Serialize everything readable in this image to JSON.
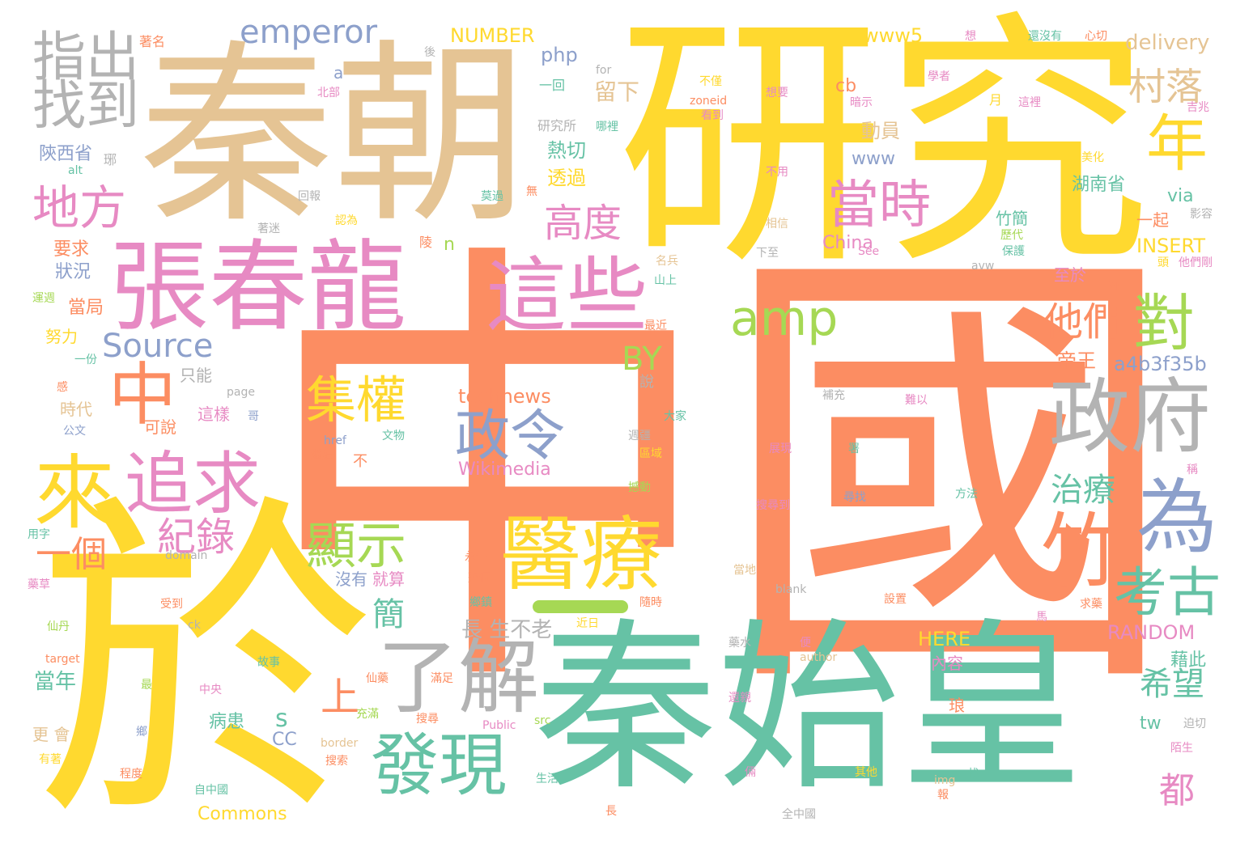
{
  "palette": {
    "orange": "#fc8d62",
    "yellow": "#ffd92f",
    "tan": "#e5c494",
    "teal": "#66c2a5",
    "pink": "#e78ac3",
    "green": "#a6d854",
    "grey": "#b3b3b3",
    "blue": "#8da0cb"
  },
  "words": [
    {
      "text": "中國",
      "color": "orange"
    },
    {
      "text": "研究",
      "color": "yellow"
    },
    {
      "text": "秦朝",
      "color": "tan"
    },
    {
      "text": "於",
      "color": "yellow"
    },
    {
      "text": "秦始皇",
      "color": "teal"
    },
    {
      "text": "張春龍",
      "color": "pink"
    },
    {
      "text": "指出",
      "color": "grey"
    },
    {
      "text": "找到",
      "color": "grey"
    },
    {
      "text": "地方",
      "color": "pink"
    },
    {
      "text": "這些",
      "color": "pink"
    },
    {
      "text": "中",
      "color": "orange"
    },
    {
      "text": "來",
      "color": "yellow"
    },
    {
      "text": "追求",
      "color": "pink"
    },
    {
      "text": "政府",
      "color": "grey"
    },
    {
      "text": "醫療",
      "color": "yellow"
    },
    {
      "text": "了解",
      "color": "grey"
    },
    {
      "text": "發現",
      "color": "teal"
    },
    {
      "text": "對",
      "color": "green"
    },
    {
      "text": "為",
      "color": "blue"
    },
    {
      "text": "竹",
      "color": "orange"
    },
    {
      "text": "考古",
      "color": "teal"
    },
    {
      "text": "政令",
      "color": "blue"
    },
    {
      "text": "集權",
      "color": "yellow"
    },
    {
      "text": "顯示",
      "color": "green"
    },
    {
      "text": "amp",
      "color": "green"
    },
    {
      "text": "年",
      "color": "yellow"
    },
    {
      "text": "當時",
      "color": "pink"
    },
    {
      "text": "高度",
      "color": "pink"
    },
    {
      "text": "村落",
      "color": "tan"
    },
    {
      "text": "他們",
      "color": "orange"
    },
    {
      "text": "emperor",
      "color": "blue"
    },
    {
      "text": "Source",
      "color": "blue"
    },
    {
      "text": "紀錄",
      "color": "pink"
    },
    {
      "text": "一個",
      "color": "orange"
    },
    {
      "text": "上",
      "color": "orange"
    },
    {
      "text": "簡",
      "color": "teal"
    },
    {
      "text": "BY",
      "color": "green"
    },
    {
      "text": "治療",
      "color": "teal"
    },
    {
      "text": "希望",
      "color": "teal"
    },
    {
      "text": "都",
      "color": "pink"
    },
    {
      "text": "NUMBER",
      "color": "yellow"
    },
    {
      "text": "www5",
      "color": "yellow"
    },
    {
      "text": "php",
      "color": "blue"
    },
    {
      "text": "delivery",
      "color": "tan"
    },
    {
      "text": "留下",
      "color": "tan"
    },
    {
      "text": "technews",
      "color": "orange"
    },
    {
      "text": "Wikimedia",
      "color": "pink"
    },
    {
      "text": "a4b3f35b",
      "color": "blue"
    },
    {
      "text": "RANDOM",
      "color": "pink"
    },
    {
      "text": "INSERT",
      "color": "yellow"
    },
    {
      "text": "HERE",
      "color": "yellow"
    },
    {
      "text": "China",
      "color": "pink"
    },
    {
      "text": "Commons",
      "color": "yellow"
    },
    {
      "text": "長 生不老",
      "color": "grey"
    },
    {
      "text": "陝西省",
      "color": "blue"
    },
    {
      "text": "湖南省",
      "color": "teal"
    },
    {
      "text": "熱切",
      "color": "teal"
    },
    {
      "text": "透過",
      "color": "yellow"
    },
    {
      "text": "動員",
      "color": "tan"
    },
    {
      "text": "www",
      "color": "blue"
    },
    {
      "text": "via",
      "color": "teal"
    },
    {
      "text": "帝王",
      "color": "orange"
    },
    {
      "text": "藉此",
      "color": "teal"
    },
    {
      "text": "s",
      "color": "teal"
    },
    {
      "text": "n",
      "color": "green"
    },
    {
      "text": "CC",
      "color": "blue"
    },
    {
      "text": "cb",
      "color": "orange"
    },
    {
      "text": "tw",
      "color": "teal"
    },
    {
      "text": "a",
      "color": "blue"
    },
    {
      "text": "要求",
      "color": "orange"
    },
    {
      "text": "狀況",
      "color": "blue"
    },
    {
      "text": "當局",
      "color": "orange"
    },
    {
      "text": "努力",
      "color": "yellow"
    },
    {
      "text": "時代",
      "color": "tan"
    },
    {
      "text": "當年",
      "color": "teal"
    },
    {
      "text": "一起",
      "color": "orange"
    },
    {
      "text": "至於",
      "color": "pink"
    },
    {
      "text": "竹簡",
      "color": "teal"
    },
    {
      "text": "內容",
      "color": "pink"
    },
    {
      "text": "只能",
      "color": "grey"
    },
    {
      "text": "這樣",
      "color": "pink"
    },
    {
      "text": "可說",
      "color": "orange"
    },
    {
      "text": "病患",
      "color": "teal"
    },
    {
      "text": "沒有",
      "color": "blue"
    },
    {
      "text": "就算",
      "color": "pink"
    },
    {
      "text": "琅",
      "color": "orange"
    },
    {
      "text": "更 會",
      "color": "tan"
    },
    {
      "text": "研究所",
      "color": "grey"
    },
    {
      "text": "北部",
      "color": "pink"
    },
    {
      "text": "一回",
      "color": "teal"
    },
    {
      "text": "不僅",
      "color": "yellow"
    },
    {
      "text": "想要",
      "color": "pink"
    },
    {
      "text": "學者",
      "color": "pink"
    },
    {
      "text": "還沒有",
      "color": "teal"
    },
    {
      "text": "心切",
      "color": "orange"
    },
    {
      "text": "著名",
      "color": "orange"
    },
    {
      "text": "想",
      "color": "pink"
    },
    {
      "text": "這裡",
      "color": "pink"
    },
    {
      "text": "月",
      "color": "yellow"
    },
    {
      "text": "吉兆",
      "color": "pink"
    },
    {
      "text": "暗示",
      "color": "pink"
    },
    {
      "text": "看到",
      "color": "pink"
    },
    {
      "text": "哪裡",
      "color": "teal"
    },
    {
      "text": "zoneid",
      "color": "orange"
    },
    {
      "text": "for",
      "color": "grey"
    },
    {
      "text": "後",
      "color": "grey"
    },
    {
      "text": "美化",
      "color": "yellow"
    },
    {
      "text": "影容",
      "color": "grey"
    },
    {
      "text": "不用",
      "color": "pink"
    },
    {
      "text": "相信",
      "color": "tan"
    },
    {
      "text": "下至",
      "color": "grey"
    },
    {
      "text": "名兵",
      "color": "tan"
    },
    {
      "text": "山上",
      "color": "teal"
    },
    {
      "text": "See",
      "color": "pink"
    },
    {
      "text": "他們剛",
      "color": "pink"
    },
    {
      "text": "歷代",
      "color": "green"
    },
    {
      "text": "保護",
      "color": "teal"
    },
    {
      "text": "avw",
      "color": "grey"
    },
    {
      "text": "頭",
      "color": "yellow"
    },
    {
      "text": "死",
      "color": "orange"
    },
    {
      "text": "最近",
      "color": "orange"
    },
    {
      "text": "說",
      "color": "grey"
    },
    {
      "text": "大家",
      "color": "teal"
    },
    {
      "text": "補充",
      "color": "grey"
    },
    {
      "text": "難以",
      "color": "pink"
    },
    {
      "text": "週疆",
      "color": "grey"
    },
    {
      "text": "區域",
      "color": "yellow"
    },
    {
      "text": "展現",
      "color": "pink"
    },
    {
      "text": "署",
      "color": "teal"
    },
    {
      "text": "稱",
      "color": "pink"
    },
    {
      "text": "撼動",
      "color": "green"
    },
    {
      "text": "方法",
      "color": "teal"
    },
    {
      "text": "搜尋到",
      "color": "pink"
    },
    {
      "text": "尋找",
      "color": "blue"
    },
    {
      "text": "blank",
      "color": "grey"
    },
    {
      "text": "當地",
      "color": "tan"
    },
    {
      "text": "設置",
      "color": "orange"
    },
    {
      "text": "隨時",
      "color": "orange"
    },
    {
      "text": "藥水",
      "color": "grey"
    },
    {
      "text": "便",
      "color": "pink"
    },
    {
      "text": "author",
      "color": "tan"
    },
    {
      "text": "馬",
      "color": "pink"
    },
    {
      "text": "求藥",
      "color": "orange"
    },
    {
      "text": "近日",
      "color": "yellow"
    },
    {
      "text": "故事",
      "color": "teal"
    },
    {
      "text": "最",
      "color": "green"
    },
    {
      "text": "中央",
      "color": "pink"
    },
    {
      "text": "仙藥",
      "color": "orange"
    },
    {
      "text": "滿足",
      "color": "orange"
    },
    {
      "text": "充滿",
      "color": "green"
    },
    {
      "text": "搜尋",
      "color": "orange"
    },
    {
      "text": "Public",
      "color": "pink"
    },
    {
      "text": "src",
      "color": "green"
    },
    {
      "text": "還親",
      "color": "pink"
    },
    {
      "text": "搜索",
      "color": "orange"
    },
    {
      "text": "生活",
      "color": "teal"
    },
    {
      "text": "倆",
      "color": "pink"
    },
    {
      "text": "長",
      "color": "orange"
    },
    {
      "text": "全中國",
      "color": "grey"
    },
    {
      "text": "其他",
      "color": "yellow"
    },
    {
      "text": "img",
      "color": "tan"
    },
    {
      "text": "報",
      "color": "orange"
    },
    {
      "text": "找",
      "color": "teal"
    },
    {
      "text": "迫切",
      "color": "grey"
    },
    {
      "text": "陌生",
      "color": "pink"
    },
    {
      "text": "border",
      "color": "tan"
    },
    {
      "text": "自中國",
      "color": "teal"
    },
    {
      "text": "程度",
      "color": "orange"
    },
    {
      "text": "有著",
      "color": "yellow"
    },
    {
      "text": "鄉",
      "color": "blue"
    },
    {
      "text": "仙丹",
      "color": "green"
    },
    {
      "text": "target",
      "color": "orange"
    },
    {
      "text": "受到",
      "color": "orange"
    },
    {
      "text": "ck",
      "color": "grey"
    },
    {
      "text": "藥草",
      "color": "pink"
    },
    {
      "text": "用字",
      "color": "teal"
    },
    {
      "text": "domain",
      "color": "grey"
    },
    {
      "text": "永生",
      "color": "orange"
    },
    {
      "text": "鄉鎮",
      "color": "teal"
    },
    {
      "text": "整個",
      "color": "orange"
    },
    {
      "text": "不",
      "color": "orange"
    },
    {
      "text": "文物",
      "color": "teal"
    },
    {
      "text": "href",
      "color": "blue"
    },
    {
      "text": "繼續",
      "color": "orange"
    },
    {
      "text": "公文",
      "color": "blue"
    },
    {
      "text": "page",
      "color": "grey"
    },
    {
      "text": "哥",
      "color": "blue"
    },
    {
      "text": "感",
      "color": "orange"
    },
    {
      "text": "一份",
      "color": "teal"
    },
    {
      "text": "運週",
      "color": "green"
    },
    {
      "text": "著迷",
      "color": "grey"
    },
    {
      "text": "認為",
      "color": "yellow"
    },
    {
      "text": "回報",
      "color": "grey"
    },
    {
      "text": "無",
      "color": "orange"
    },
    {
      "text": "莫過",
      "color": "teal"
    },
    {
      "text": "陵",
      "color": "orange"
    },
    {
      "text": "alt",
      "color": "teal"
    },
    {
      "text": "琊",
      "color": "grey"
    }
  ]
}
